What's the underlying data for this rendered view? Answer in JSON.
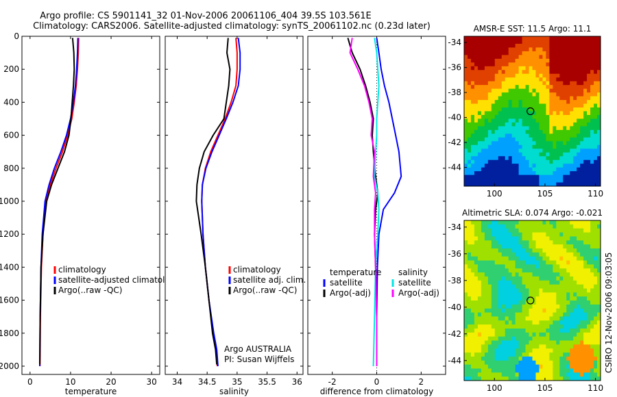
{
  "title": {
    "line1": "Argo profile: CS 5901141_32 01-Nov-2006 20061106_404 39.5S 103.561E",
    "line2": "Climatology: CARS2006. Satellite-adjusted climatology: synTS_20061102.nc (0.23d later)"
  },
  "side_label": "CSIRO 12-Nov-2006 09:03:05",
  "colors": {
    "climatology": "#ff0000",
    "satellite": "#0000ff",
    "argo": "#000000",
    "argo_adj_salinity": "#ff00ff",
    "satellite_salinity": "#00e5e5"
  },
  "chart_data": [
    {
      "type": "line",
      "xlabel": "temperature",
      "ylabel": "",
      "xlim": [
        -2,
        32
      ],
      "ylim": [
        2050,
        0
      ],
      "xticks": [
        "0",
        "10",
        "20",
        "30"
      ],
      "yticks": [
        "0",
        "200",
        "400",
        "600",
        "800",
        "1000",
        "1200",
        "1400",
        "1600",
        "1800",
        "2000"
      ],
      "legend": {
        "position": "lower-right",
        "entries": [
          "climatology",
          "satellite-adjusted climatology",
          "Argo(..raw -QC)"
        ]
      },
      "series": [
        {
          "name": "climatology",
          "color_key": "climatology",
          "x": [
            12.0,
            11.9,
            11.7,
            11.4,
            10.9,
            10.3,
            9.3,
            8.0,
            6.4,
            5.0,
            3.9,
            3.2,
            2.8,
            2.55,
            2.45
          ],
          "y": [
            10,
            100,
            200,
            300,
            400,
            500,
            600,
            700,
            800,
            900,
            1000,
            1200,
            1400,
            1700,
            2000
          ]
        },
        {
          "name": "satellite-adjusted climatology",
          "color_key": "satellite",
          "x": [
            11.8,
            11.7,
            11.5,
            11.2,
            10.7,
            10.0,
            9.0,
            7.6,
            6.0,
            4.7,
            3.7,
            3.0,
            2.7,
            2.5,
            2.4
          ],
          "y": [
            10,
            100,
            200,
            300,
            400,
            500,
            600,
            700,
            800,
            900,
            1000,
            1200,
            1400,
            1700,
            2000
          ]
        },
        {
          "name": "Argo(..raw -QC)",
          "color_key": "argo",
          "x": [
            10.5,
            10.8,
            10.9,
            10.7,
            10.4,
            10.1,
            9.6,
            8.5,
            6.9,
            5.3,
            4.1,
            3.2,
            2.7,
            2.5,
            2.4
          ],
          "y": [
            10,
            100,
            200,
            300,
            400,
            500,
            600,
            700,
            800,
            900,
            1000,
            1200,
            1400,
            1700,
            1990
          ]
        }
      ]
    },
    {
      "type": "line",
      "xlabel": "salinity",
      "ylabel": "",
      "xlim": [
        33.8,
        36.1
      ],
      "ylim": [
        2050,
        0
      ],
      "xticks": [
        "34",
        "34.5",
        "35",
        "35.5",
        "36"
      ],
      "legend": {
        "position": "lower-right",
        "entries": [
          "climatology",
          "satellite adj. clim.",
          "Argo(..raw -QC)"
        ]
      },
      "annotations": [
        "Argo AUSTRALIA",
        "PI: Susan Wijffels"
      ],
      "series": [
        {
          "name": "climatology",
          "color_key": "climatology",
          "x": [
            34.98,
            35.0,
            35.0,
            34.98,
            34.9,
            34.8,
            34.68,
            34.56,
            34.47,
            34.42,
            34.41,
            34.43,
            34.47,
            34.53,
            34.6,
            34.65,
            34.67
          ],
          "y": [
            10,
            100,
            200,
            300,
            400,
            500,
            600,
            700,
            800,
            900,
            1000,
            1200,
            1400,
            1600,
            1800,
            1900,
            2000
          ]
        },
        {
          "name": "satellite adj. clim.",
          "color_key": "satellite",
          "x": [
            35.02,
            35.05,
            35.05,
            35.02,
            34.93,
            34.82,
            34.7,
            34.58,
            34.48,
            34.42,
            34.41,
            34.43,
            34.47,
            34.53,
            34.61,
            34.66,
            34.68
          ],
          "y": [
            10,
            100,
            200,
            300,
            400,
            500,
            600,
            700,
            800,
            900,
            1000,
            1200,
            1400,
            1600,
            1800,
            1900,
            2000
          ]
        },
        {
          "name": "Argo(..raw -QC)",
          "color_key": "argo",
          "x": [
            34.85,
            34.83,
            34.88,
            34.86,
            34.82,
            34.78,
            34.6,
            34.45,
            34.37,
            34.33,
            34.32,
            34.4,
            34.47,
            34.53,
            34.59,
            34.64,
            34.66
          ],
          "y": [
            10,
            100,
            200,
            300,
            400,
            500,
            600,
            700,
            800,
            900,
            1000,
            1200,
            1400,
            1600,
            1800,
            1900,
            1990
          ]
        }
      ]
    },
    {
      "type": "line",
      "xlabel": "difference from climatology",
      "ylabel": "",
      "xlim": [
        -3.1,
        3.1
      ],
      "ylim": [
        2050,
        0
      ],
      "xticks": [
        "-2",
        "0",
        "2"
      ],
      "legend": {
        "position": "lower-center",
        "columns": [
          {
            "heading": "temperature",
            "entries": [
              "satellite",
              "Argo(-adj)"
            ]
          },
          {
            "heading": "salinity",
            "entries": [
              "satellite",
              "Argo(-adj)"
            ]
          }
        ]
      },
      "series": [
        {
          "name": "temperature satellite",
          "color_key": "satellite",
          "x": [
            0.0,
            0.1,
            0.2,
            0.35,
            0.55,
            0.7,
            0.85,
            1.0,
            1.1,
            0.8,
            0.3,
            0.1,
            0.03,
            0.0,
            0.0
          ],
          "y": [
            10,
            100,
            200,
            300,
            400,
            500,
            600,
            700,
            850,
            950,
            1050,
            1200,
            1400,
            1700,
            2000
          ]
        },
        {
          "name": "temperature Argo(-adj)",
          "color_key": "argo",
          "x": [
            -1.3,
            -1.1,
            -0.75,
            -0.5,
            -0.3,
            -0.15,
            -0.2,
            -0.15,
            -0.05,
            0.05,
            -0.05,
            -0.1,
            -0.05,
            0.0,
            0.0
          ],
          "y": [
            10,
            100,
            200,
            300,
            400,
            500,
            600,
            700,
            850,
            950,
            1050,
            1200,
            1400,
            1700,
            2000
          ]
        },
        {
          "name": "salinity satellite",
          "color_key": "satellite_salinity",
          "x": [
            -0.1,
            0.0,
            0.05,
            0.1,
            0.05,
            0.0,
            0.0,
            -0.05,
            -0.1,
            0.05,
            0.1,
            0.05,
            -0.05,
            -0.1,
            -0.15
          ],
          "y": [
            10,
            100,
            200,
            300,
            400,
            500,
            600,
            700,
            850,
            950,
            1050,
            1200,
            1400,
            1700,
            2000
          ]
        },
        {
          "name": "salinity Argo(-adj)",
          "color_key": "argo_adj_salinity",
          "x": [
            -1.1,
            -1.2,
            -0.85,
            -0.55,
            -0.35,
            -0.2,
            -0.25,
            -0.1,
            -0.15,
            -0.05,
            -0.1,
            -0.1,
            -0.05,
            0.0,
            0.0
          ],
          "y": [
            10,
            100,
            200,
            300,
            400,
            500,
            600,
            700,
            850,
            950,
            1050,
            1200,
            1400,
            1700,
            2000
          ]
        }
      ]
    },
    {
      "type": "heatmap",
      "title": "AMSR-E SST: 11.5 Argo: 11.1",
      "xlim": [
        97,
        110.5
      ],
      "ylim": [
        -45.5,
        -33.5
      ],
      "xticks": [
        "100",
        "105",
        "110"
      ],
      "yticks": [
        "-34",
        "-36",
        "-38",
        "-40",
        "-42",
        "-44"
      ],
      "marker": {
        "x": 103.56,
        "y": -39.5
      },
      "palette": [
        "#00209f",
        "#00a0ff",
        "#00dcd0",
        "#00c050",
        "#40c800",
        "#ffe000",
        "#ff9000",
        "#e04000",
        "#a80000"
      ],
      "field": "sst"
    },
    {
      "type": "heatmap",
      "title": "Altimetric SLA: 0.074 Argo: -0.021",
      "xlim": [
        97,
        110.5
      ],
      "ylim": [
        -45.5,
        -33.5
      ],
      "xticks": [
        "100",
        "105",
        "110"
      ],
      "yticks": [
        "-34",
        "-36",
        "-38",
        "-40",
        "-42",
        "-44"
      ],
      "marker": {
        "x": 103.56,
        "y": -39.5
      },
      "palette": [
        "#00a0ff",
        "#00d0e0",
        "#30d070",
        "#a0e000",
        "#f0f000",
        "#ffc000",
        "#ff9000"
      ],
      "field": "sla"
    }
  ]
}
